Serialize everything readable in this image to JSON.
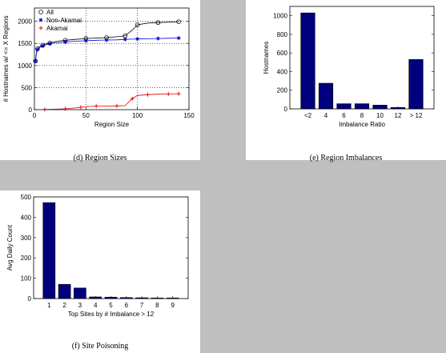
{
  "captions": {
    "d": "(d) Region Sizes",
    "e": "(e) Region Imbalances",
    "f": "(f) Site Poisoning"
  },
  "chart_data": [
    {
      "id": "region-sizes",
      "type": "line",
      "xlabel": "Region Size",
      "ylabel": "# Hostnames w/ <= X Regions",
      "xlim": [
        0,
        150
      ],
      "ylim": [
        0,
        2300
      ],
      "xticks": [
        0,
        50,
        100,
        150
      ],
      "yticks": [
        0,
        500,
        1000,
        1500,
        2000
      ],
      "grid": true,
      "grid_style": "dotted",
      "legend_position": "top-left",
      "series": [
        {
          "name": "All",
          "color": "#000000",
          "marker": "circle",
          "x": [
            1,
            2,
            3,
            5,
            8,
            10,
            15,
            20,
            30,
            40,
            50,
            60,
            70,
            80,
            88,
            95,
            100,
            110,
            120,
            130,
            140
          ],
          "y": [
            1100,
            1300,
            1380,
            1420,
            1460,
            1480,
            1510,
            1540,
            1570,
            1590,
            1610,
            1620,
            1630,
            1650,
            1670,
            1800,
            1920,
            1960,
            1970,
            1980,
            1990
          ]
        },
        {
          "name": "Non-Akamai",
          "color": "#0000cc",
          "marker": "star",
          "x": [
            1,
            2,
            3,
            5,
            8,
            10,
            15,
            20,
            30,
            40,
            50,
            60,
            70,
            80,
            88,
            95,
            100,
            110,
            120,
            130,
            140
          ],
          "y": [
            1100,
            1290,
            1360,
            1410,
            1440,
            1460,
            1490,
            1510,
            1530,
            1550,
            1560,
            1570,
            1575,
            1580,
            1590,
            1595,
            1600,
            1605,
            1610,
            1615,
            1620
          ]
        },
        {
          "name": "Akamai",
          "color": "#dd0000",
          "marker": "plus",
          "x": [
            10,
            20,
            30,
            40,
            45,
            50,
            60,
            70,
            80,
            88,
            95,
            100,
            110,
            120,
            130,
            140
          ],
          "y": [
            5,
            10,
            20,
            40,
            55,
            70,
            80,
            80,
            85,
            90,
            250,
            320,
            340,
            350,
            355,
            360
          ]
        }
      ]
    },
    {
      "id": "region-imbalances",
      "type": "bar",
      "xlabel": "Imbalance Ratio",
      "ylabel": "Hostnames",
      "categories": [
        "<2",
        "4",
        "6",
        "8",
        "10",
        "12",
        "> 12"
      ],
      "values": [
        1030,
        275,
        55,
        55,
        40,
        15,
        530
      ],
      "ylim": [
        0,
        1100
      ],
      "yticks": [
        0,
        200,
        400,
        600,
        800,
        1000
      ],
      "bar_color": "#00007f",
      "grid": false
    },
    {
      "id": "site-poisoning",
      "type": "bar",
      "xlabel": "Top Sites by # Imbalance > 12",
      "ylabel": "Avg Daily Count",
      "categories": [
        "1",
        "2",
        "3",
        "4",
        "5",
        "6",
        "7",
        "8",
        "9"
      ],
      "values": [
        472,
        70,
        52,
        8,
        7,
        5,
        4,
        3,
        3
      ],
      "ylim": [
        0,
        500
      ],
      "yticks": [
        0,
        100,
        200,
        300,
        400,
        500
      ],
      "bar_color": "#00007f",
      "grid": false
    }
  ]
}
